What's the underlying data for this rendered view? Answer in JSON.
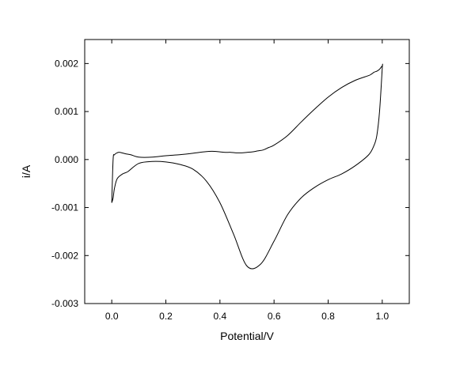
{
  "chart_data": {
    "type": "line",
    "title": "",
    "xlabel": "Potential/V",
    "ylabel": "i/A",
    "xlim": [
      -0.1,
      1.1
    ],
    "ylim": [
      -0.003,
      0.0025
    ],
    "xticks": [
      0.0,
      0.2,
      0.4,
      0.6,
      0.8,
      1.0
    ],
    "xtick_labels": [
      "0.0",
      "0.2",
      "0.4",
      "0.6",
      "0.8",
      "1.0"
    ],
    "yticks": [
      -0.003,
      -0.002,
      -0.001,
      0.0,
      0.001,
      0.002
    ],
    "ytick_labels": [
      "-0.003",
      "-0.002",
      "-0.001",
      "0.000",
      "0.001",
      "0.002"
    ],
    "grid": false,
    "legend": "none",
    "line_color": "#000000",
    "series": [
      {
        "x": [
          0.0,
          0.005,
          0.01,
          0.02,
          0.04,
          0.06,
          0.1,
          0.15,
          0.2,
          0.25,
          0.3,
          0.35,
          0.4,
          0.45,
          0.5,
          0.55,
          0.6,
          0.65,
          0.7,
          0.75,
          0.8,
          0.85,
          0.9,
          0.95,
          0.97,
          0.98,
          0.99,
          1.0,
          1.0,
          0.99,
          0.98,
          0.97,
          0.96,
          0.95,
          0.9,
          0.85,
          0.8,
          0.75,
          0.7,
          0.65,
          0.6,
          0.58,
          0.56,
          0.54,
          0.52,
          0.5,
          0.48,
          0.46,
          0.44,
          0.42,
          0.4,
          0.38,
          0.36,
          0.34,
          0.3,
          0.25,
          0.2,
          0.15,
          0.1,
          0.07,
          0.05,
          0.03,
          0.02,
          0.01,
          0.005,
          0.0
        ],
        "y": [
          -0.0009,
          -0.0008,
          -0.0006,
          -0.0004,
          -0.0003,
          -0.00025,
          -8e-05,
          -4e-05,
          -5e-05,
          -0.0001,
          -0.0002,
          -0.00045,
          -0.0009,
          -0.00155,
          -0.00222,
          -0.00218,
          -0.0017,
          -0.00115,
          -0.0008,
          -0.00058,
          -0.00042,
          -0.0003,
          -0.00013,
          0.0001,
          0.0003,
          0.0005,
          0.001,
          0.0019,
          0.00195,
          0.00188,
          0.00184,
          0.00182,
          0.00178,
          0.00175,
          0.00165,
          0.0015,
          0.0013,
          0.00105,
          0.00078,
          0.0005,
          0.0003,
          0.00025,
          0.0002,
          0.00018,
          0.00016,
          0.00015,
          0.00014,
          0.00014,
          0.00015,
          0.00015,
          0.00016,
          0.00017,
          0.00017,
          0.00016,
          0.00013,
          0.0001,
          8e-05,
          5e-05,
          5e-05,
          0.0001,
          0.00012,
          0.00015,
          0.00014,
          0.0001,
          0.0,
          -0.0009
        ]
      }
    ]
  }
}
